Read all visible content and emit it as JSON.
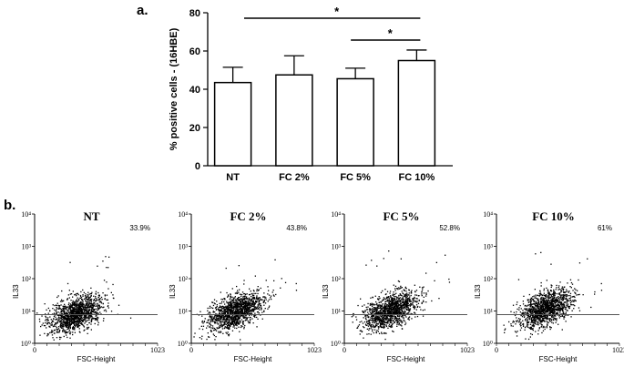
{
  "panel_a_label": "a.",
  "panel_b_label": "b.",
  "chart_data": [
    {
      "type": "bar",
      "categories": [
        "NT",
        "FC 2%",
        "FC 5%",
        "FC 10%"
      ],
      "values": [
        43.5,
        47.5,
        45.5,
        55
      ],
      "errors": [
        8,
        10,
        5.5,
        5.5
      ],
      "ylabel": "% positive cells - (16HBE)",
      "xlabel": "",
      "ylim": [
        0,
        80
      ],
      "yticks": [
        0,
        20,
        40,
        60,
        80
      ],
      "significance": [
        {
          "from": "NT",
          "to": "FC 10%",
          "label": "*"
        },
        {
          "from": "FC 5%",
          "to": "FC 10%",
          "label": "*"
        }
      ],
      "grid": false,
      "bar_color": "#ffffff"
    },
    {
      "type": "scatter",
      "panels": [
        {
          "title": "NT",
          "percent": "33.9%"
        },
        {
          "title": "FC 2%",
          "percent": "43.8%"
        },
        {
          "title": "FC 5%",
          "percent": "52.8%"
        },
        {
          "title": "FC 10%",
          "percent": "61%"
        }
      ],
      "xlabel": "FSC-Height",
      "ylabel": "IL33",
      "xticks": [
        "0",
        "1023"
      ],
      "yticks": [
        "10⁰",
        "10¹",
        "10²",
        "10³",
        "10⁴"
      ],
      "point_color": "#000000"
    }
  ]
}
